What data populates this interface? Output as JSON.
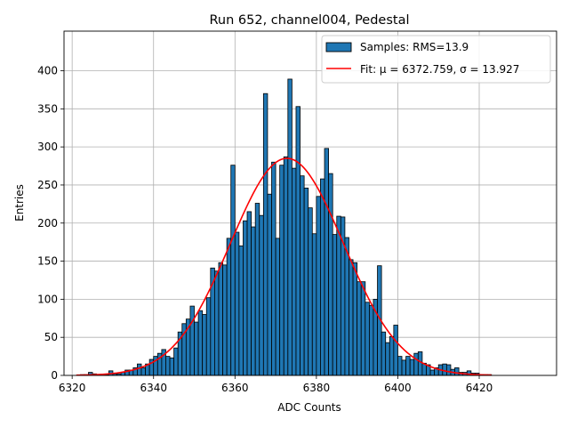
{
  "chart_data": {
    "type": "bar",
    "title": "Run 652, channel004, Pedestal",
    "xlabel": "ADC Counts",
    "ylabel": "Entries",
    "xlim": [
      6318,
      6439
    ],
    "ylim": [
      0,
      452
    ],
    "xticks": [
      6320,
      6340,
      6360,
      6380,
      6400,
      6420
    ],
    "yticks": [
      0,
      50,
      100,
      150,
      200,
      250,
      300,
      350,
      400
    ],
    "grid": true,
    "legend_position": "top-right",
    "bin_width": 1,
    "bins": {
      "x": [
        6322,
        6323,
        6324,
        6325,
        6326,
        6327,
        6328,
        6329,
        6330,
        6331,
        6332,
        6333,
        6334,
        6335,
        6336,
        6337,
        6338,
        6339,
        6340,
        6341,
        6342,
        6343,
        6344,
        6345,
        6346,
        6347,
        6348,
        6349,
        6350,
        6351,
        6352,
        6353,
        6354,
        6355,
        6356,
        6357,
        6358,
        6359,
        6360,
        6361,
        6362,
        6363,
        6364,
        6365,
        6366,
        6367,
        6368,
        6369,
        6370,
        6371,
        6372,
        6373,
        6374,
        6375,
        6376,
        6377,
        6378,
        6379,
        6380,
        6381,
        6382,
        6383,
        6384,
        6385,
        6386,
        6387,
        6388,
        6389,
        6390,
        6391,
        6392,
        6393,
        6394,
        6395,
        6396,
        6397,
        6398,
        6399,
        6400,
        6401,
        6402,
        6403,
        6404,
        6405,
        6406,
        6407,
        6408,
        6409,
        6410,
        6411,
        6412,
        6413,
        6414,
        6415,
        6416,
        6417,
        6418,
        6419,
        6420,
        6421,
        6422
      ],
      "values": [
        1,
        1,
        4,
        2,
        1,
        1,
        1,
        6,
        2,
        2,
        4,
        7,
        7,
        10,
        15,
        10,
        15,
        21,
        25,
        29,
        34,
        25,
        23,
        36,
        57,
        68,
        74,
        91,
        70,
        85,
        80,
        102,
        141,
        137,
        148,
        145,
        180,
        276,
        188,
        170,
        203,
        215,
        195,
        226,
        210,
        370,
        238,
        280,
        180,
        276,
        287,
        389,
        272,
        353,
        262,
        246,
        220,
        186,
        235,
        258,
        298,
        265,
        185,
        209,
        208,
        181,
        152,
        148,
        123,
        123,
        96,
        92,
        100,
        144,
        57,
        43,
        51,
        66,
        25,
        20,
        25,
        21,
        29,
        31,
        16,
        14,
        7,
        10,
        14,
        15,
        14,
        8,
        10,
        4,
        4,
        6,
        3,
        3,
        1,
        1,
        1
      ]
    },
    "series": [
      {
        "name": "Samples: RMS=13.9",
        "kind": "histogram",
        "color": "#1f77b4"
      },
      {
        "name": "Fit: μ = 6372.759, σ = 13.927",
        "kind": "gaussian",
        "color": "#ff0000",
        "mu": 6372.759,
        "sigma": 13.927,
        "amplitude": 285,
        "x_range": [
          6321,
          6423
        ]
      }
    ]
  }
}
